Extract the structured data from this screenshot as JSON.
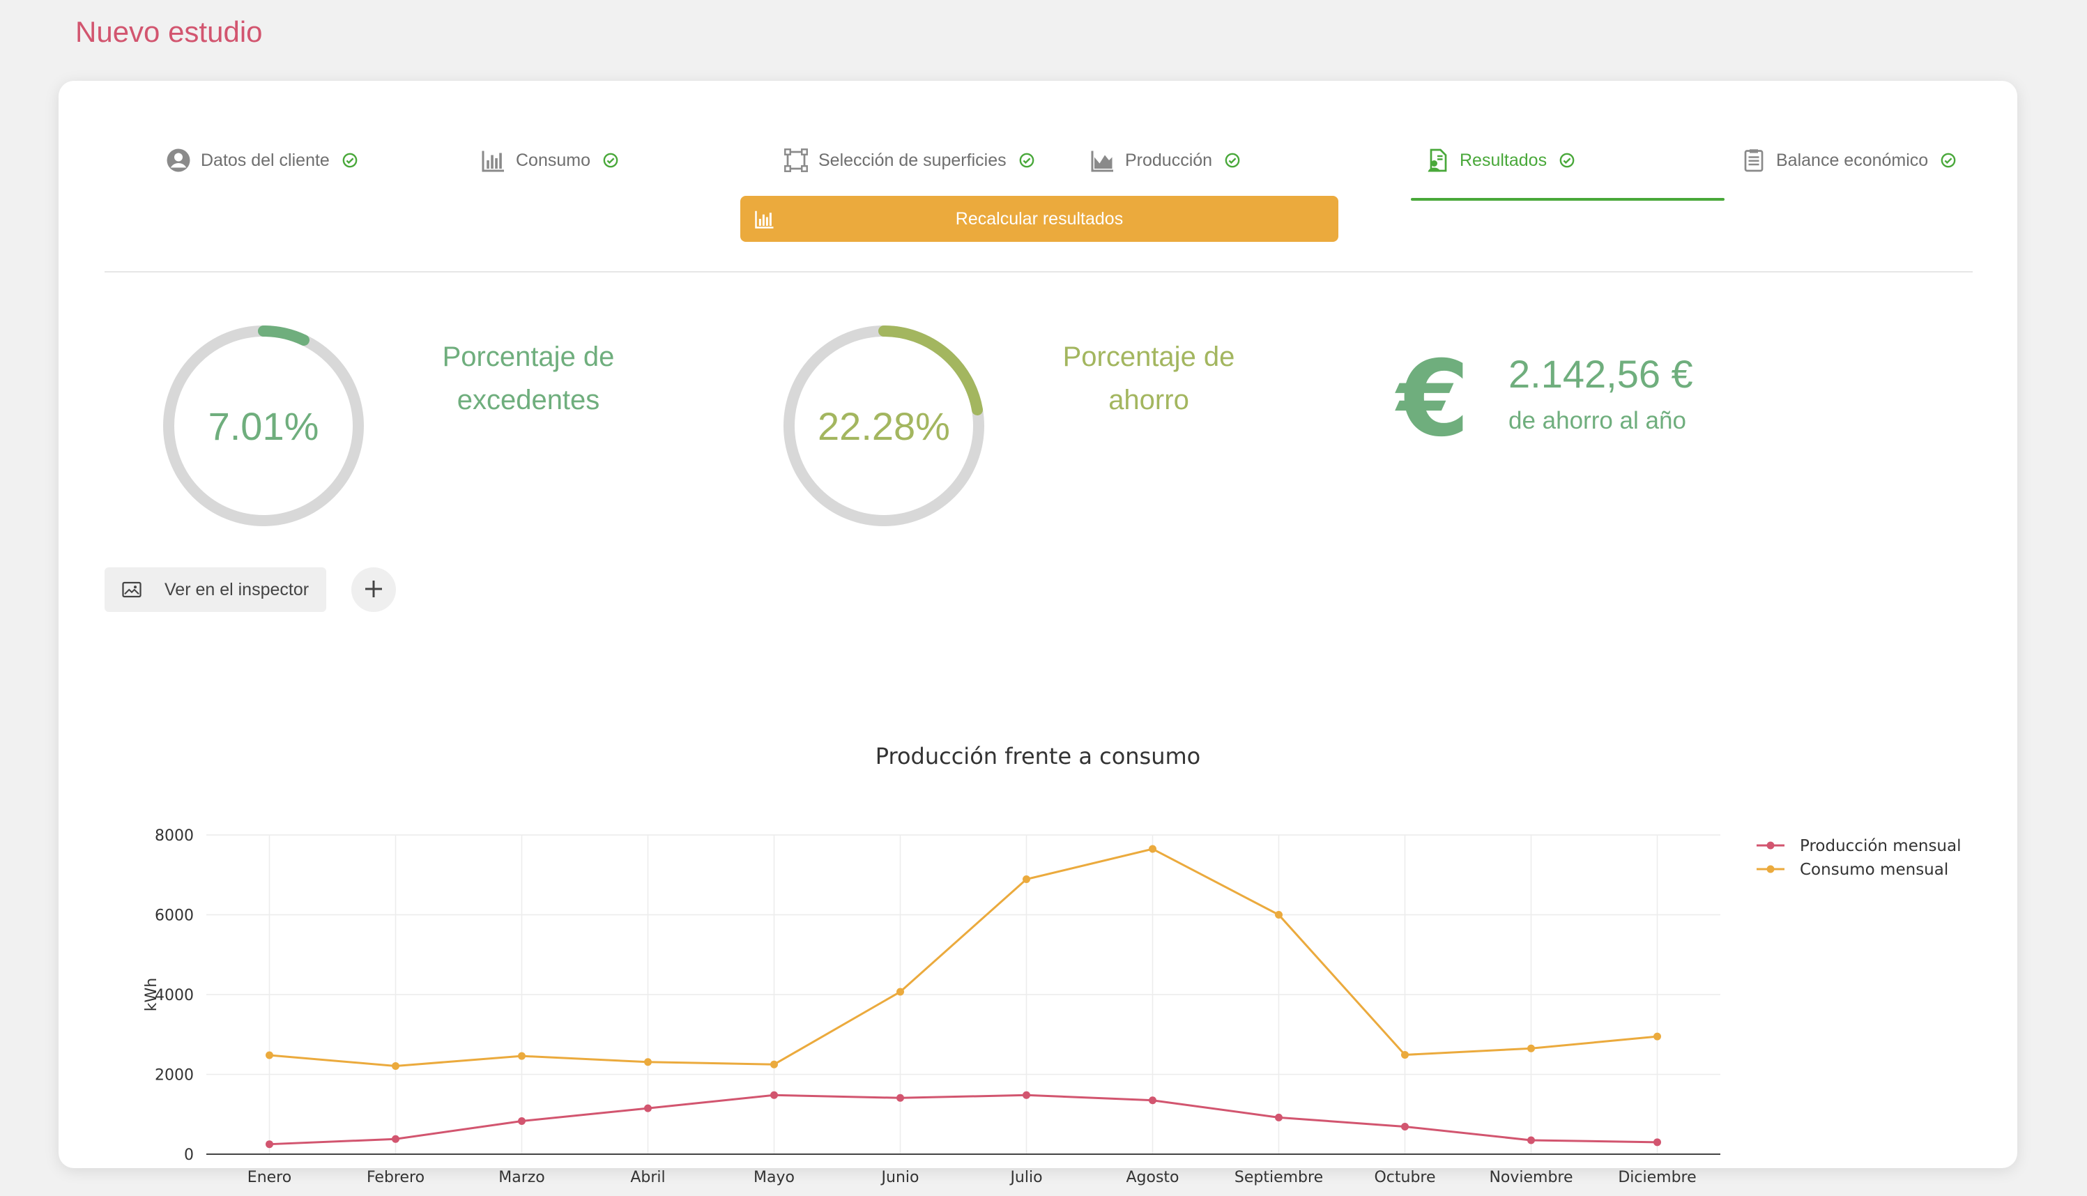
{
  "page": {
    "title": "Nuevo estudio"
  },
  "tabs": [
    {
      "label": "Datos del cliente",
      "icon": "user-circle-icon",
      "done": true
    },
    {
      "label": "Consumo",
      "icon": "bar-chart-icon",
      "done": true
    },
    {
      "label": "Selección de superficies",
      "icon": "select-area-icon",
      "done": true
    },
    {
      "label": "Producción",
      "icon": "area-chart-icon",
      "done": true
    },
    {
      "label": "Resultados",
      "icon": "results-document-icon",
      "done": true,
      "active": true
    },
    {
      "label": "Balance económico",
      "icon": "clipboard-icon",
      "done": true
    }
  ],
  "actions": {
    "recalculate_label": "Recalcular resultados",
    "inspector_label": "Ver en el inspector"
  },
  "metrics": {
    "surplus": {
      "value_text": "7.01%",
      "value": 7.01,
      "label": "Porcentaje de excedentes",
      "color": "#6fae7d"
    },
    "saving_pct": {
      "value_text": "22.28%",
      "value": 22.28,
      "label": "Porcentaje de ahorro",
      "color": "#a3b65f"
    },
    "saving_amount": {
      "value_text": "2.142,56 €",
      "label": "de ahorro al año",
      "symbol": "€",
      "color": "#6fae7d"
    }
  },
  "colors": {
    "title": "#d2556f",
    "active_tab": "#49a83a",
    "button": "#ebaa3d",
    "gauge_track": "#d8d8d8"
  },
  "chart_data": {
    "type": "line",
    "title": "Producción frente a consumo",
    "xlabel": "",
    "ylabel": "kWh",
    "categories": [
      "Enero",
      "Febrero",
      "Marzo",
      "Abril",
      "Mayo",
      "Junio",
      "Julio",
      "Agosto",
      "Septiembre",
      "Octubre",
      "Noviembre",
      "Diciembre"
    ],
    "ylim": [
      0,
      8000
    ],
    "yticks": [
      0,
      2000,
      4000,
      6000,
      8000
    ],
    "grid": true,
    "legend_position": "top-right",
    "series": [
      {
        "name": "Producción mensual",
        "color": "#d2556f",
        "values": [
          250,
          380,
          830,
          1150,
          1480,
          1410,
          1480,
          1350,
          920,
          690,
          350,
          300
        ]
      },
      {
        "name": "Consumo mensual",
        "color": "#ebaa3d",
        "values": [
          2480,
          2210,
          2460,
          2310,
          2250,
          4070,
          6890,
          7650,
          6000,
          2490,
          2650,
          2950
        ]
      }
    ]
  }
}
